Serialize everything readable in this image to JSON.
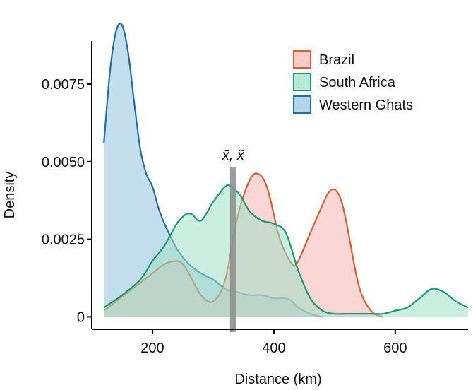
{
  "chart_data": {
    "type": "area",
    "xlabel": "Distance (km)",
    "ylabel": "Density",
    "xlim": [
      100,
      720
    ],
    "ylim": [
      -0.0004,
      0.0098
    ],
    "x_ticks": [
      200,
      400,
      600
    ],
    "x_tick_labels": [
      "200",
      "400",
      "600"
    ],
    "y_ticks": [
      0,
      0.0025,
      0.005,
      0.0075
    ],
    "y_tick_labels": [
      "0",
      "0.0025",
      "0.0050",
      "0.0075"
    ],
    "grid": false,
    "legend_position": "top-right",
    "annotation": {
      "label": "x̄, x̃",
      "x": 333,
      "color": "#8c8c8c"
    },
    "series": [
      {
        "name": "Brazil",
        "color": "#d2622f",
        "fill": "#f6b5b5",
        "x": [
          120,
          140,
          160,
          180,
          200,
          220,
          240,
          250,
          260,
          280,
          300,
          320,
          340,
          360,
          375,
          390,
          410,
          430,
          440,
          460,
          480,
          490,
          500,
          510,
          520,
          540,
          560,
          580
        ],
        "y": [
          0.0002,
          0.0005,
          0.0008,
          0.0011,
          0.0014,
          0.0017,
          0.0018,
          0.0017,
          0.0014,
          0.0007,
          0.0005,
          0.0012,
          0.0032,
          0.0044,
          0.0046,
          0.0041,
          0.0025,
          0.0017,
          0.0018,
          0.0027,
          0.0036,
          0.004,
          0.0041,
          0.0038,
          0.003,
          0.001,
          0.0002,
          0.0
        ]
      },
      {
        "name": "South Africa",
        "color": "#1a9b74",
        "fill": "#9ee0c7",
        "x": [
          120,
          150,
          180,
          200,
          220,
          240,
          255,
          265,
          280,
          300,
          320,
          330,
          345,
          360,
          380,
          400,
          420,
          440,
          460,
          480,
          500,
          520,
          540,
          560,
          580,
          600,
          620,
          640,
          660,
          680,
          700,
          720
        ],
        "y": [
          0.0003,
          0.0007,
          0.0012,
          0.0018,
          0.0023,
          0.003,
          0.0033,
          0.0033,
          0.0031,
          0.0037,
          0.0042,
          0.0042,
          0.0039,
          0.0034,
          0.0031,
          0.003,
          0.0027,
          0.0015,
          0.0006,
          0.0002,
          0.0001,
          0.0001,
          0.0001,
          0.0001,
          0.0001,
          0.0002,
          0.0003,
          0.0006,
          0.0009,
          0.0008,
          0.0005,
          0.0003
        ]
      },
      {
        "name": "Western Ghats",
        "color": "#1f6fa5",
        "fill": "#94c3de",
        "x": [
          120,
          130,
          140,
          150,
          160,
          170,
          180,
          190,
          200,
          210,
          220,
          240,
          260,
          280,
          300,
          320,
          340,
          360,
          380,
          400,
          420,
          430,
          440,
          460,
          480
        ],
        "y": [
          0.0056,
          0.0079,
          0.0092,
          0.0094,
          0.0085,
          0.0069,
          0.0054,
          0.0046,
          0.0042,
          0.0035,
          0.003,
          0.0022,
          0.0017,
          0.0014,
          0.0012,
          0.0009,
          0.0008,
          0.0007,
          0.0007,
          0.0006,
          0.0006,
          0.0005,
          0.0003,
          0.0001,
          0.0
        ]
      }
    ]
  }
}
